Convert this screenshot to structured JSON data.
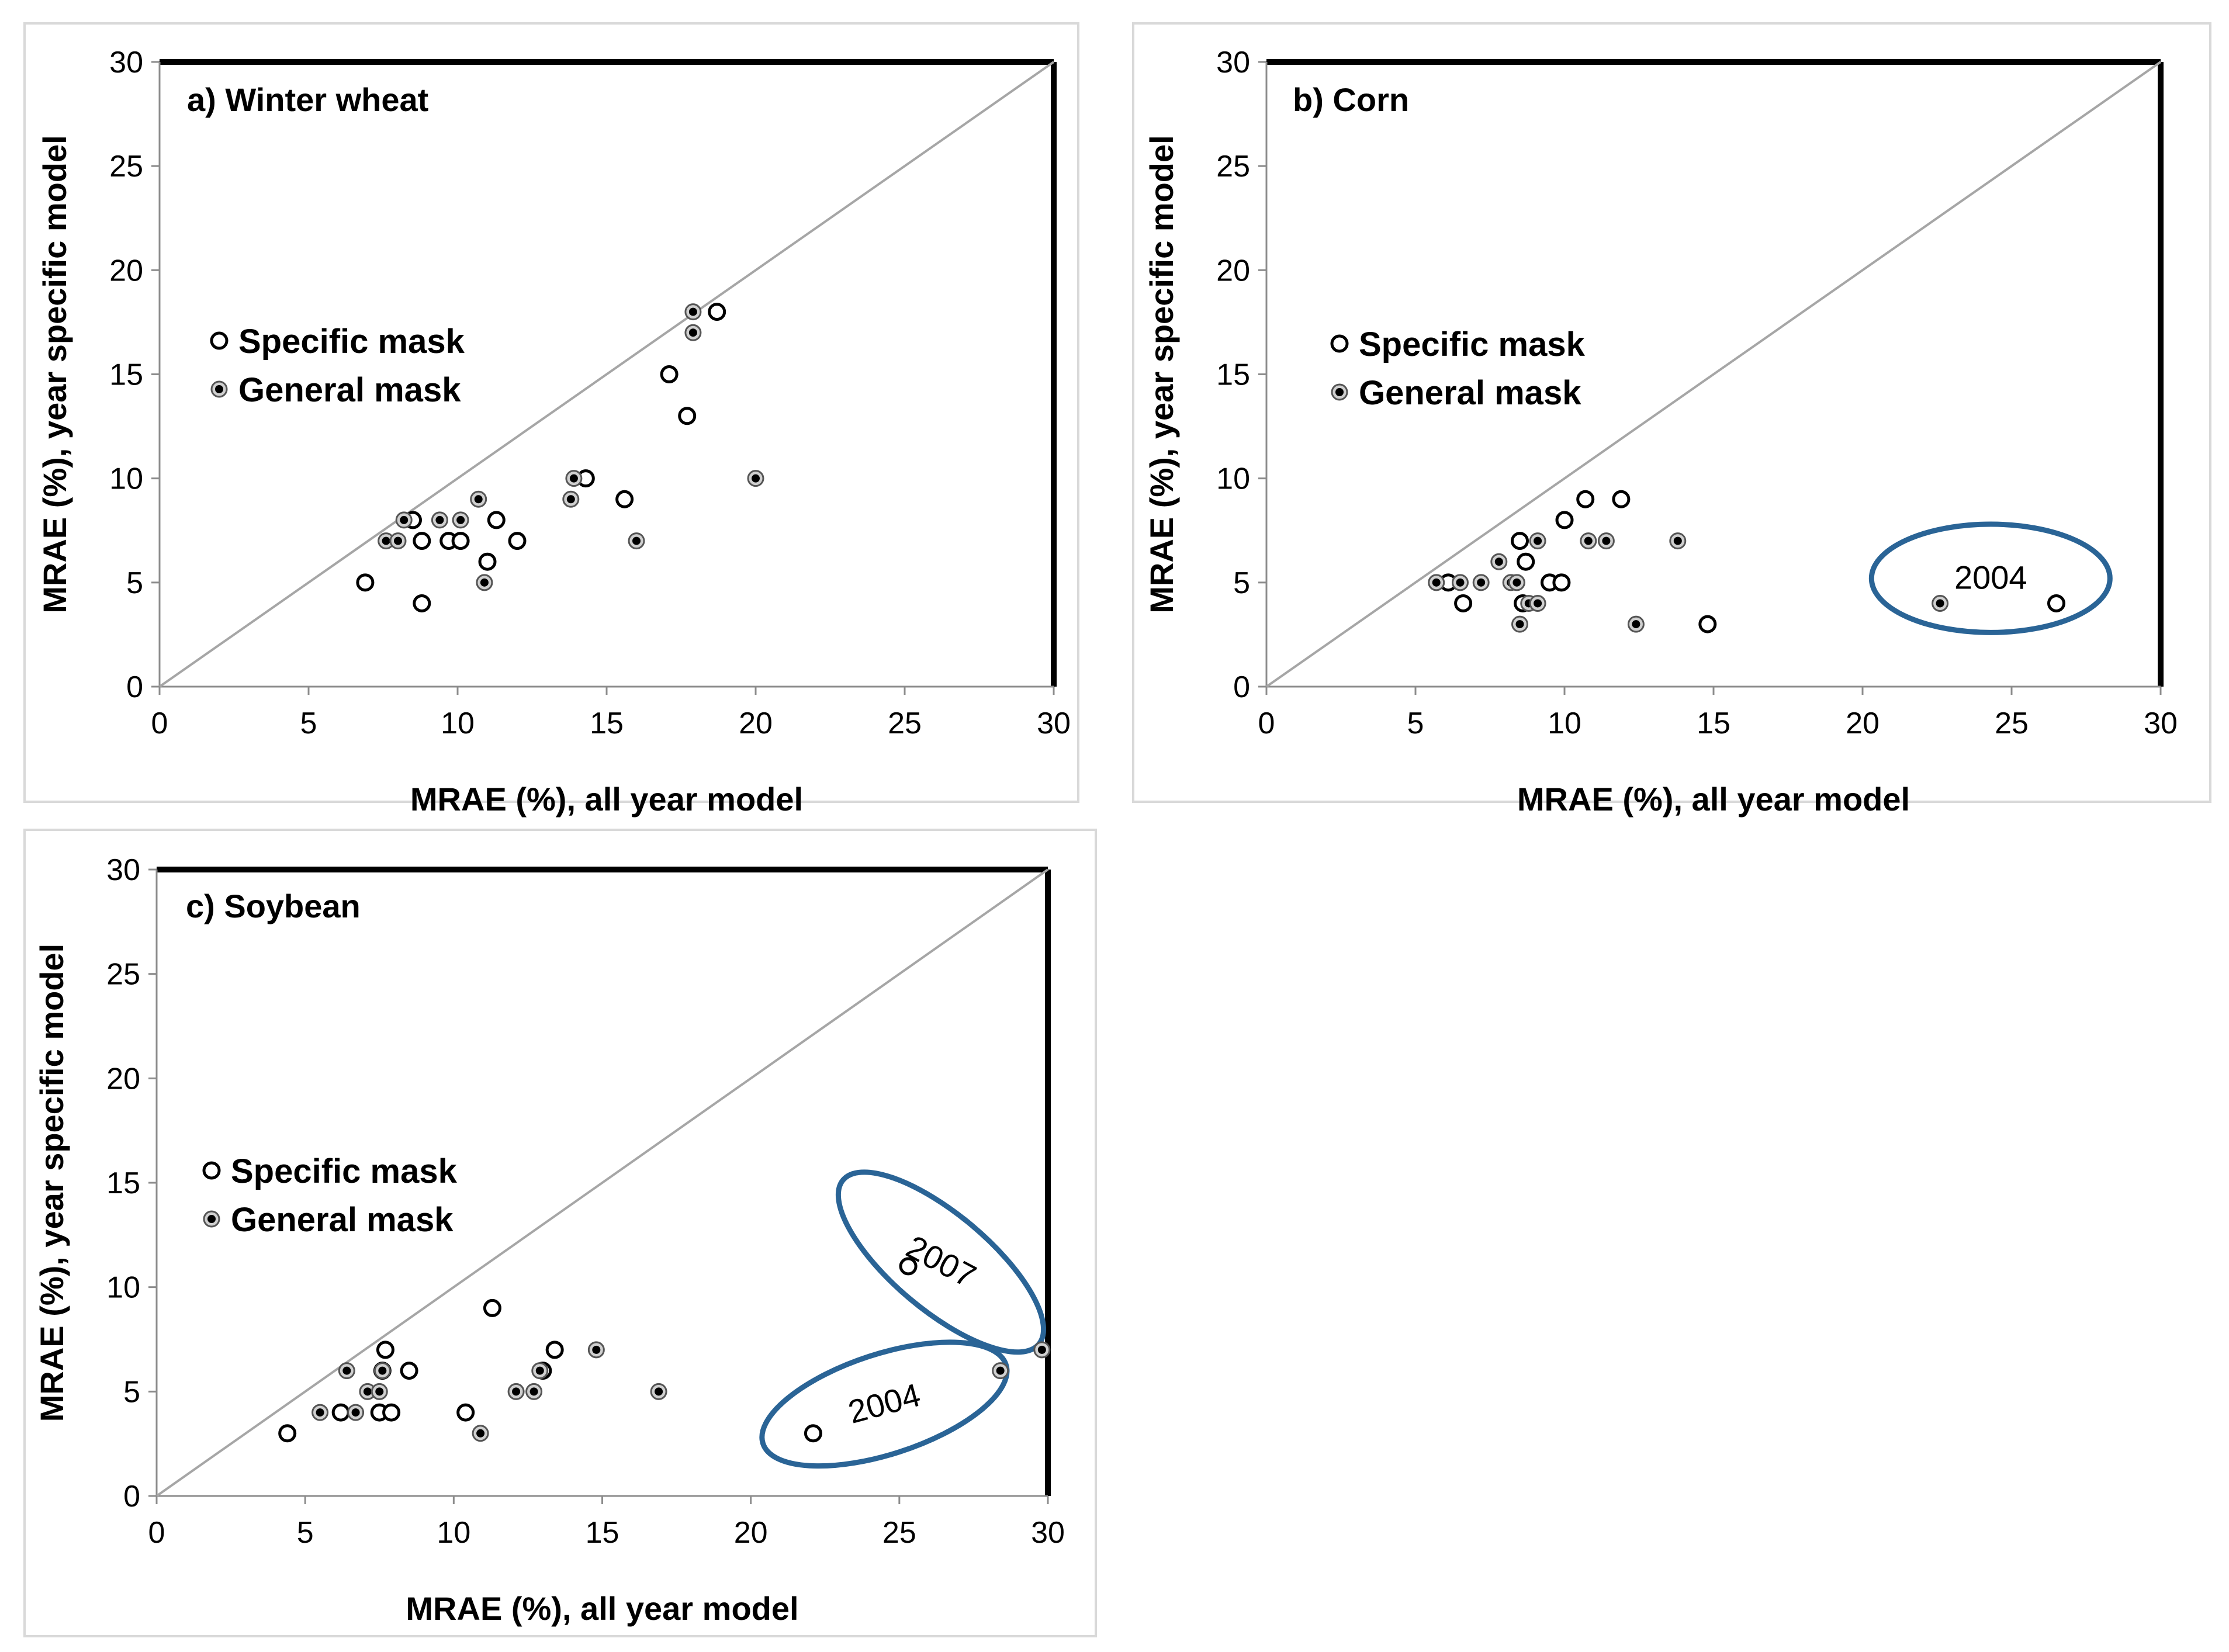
{
  "chart_data": [
    {
      "type": "scatter",
      "id": "a",
      "title": "a) Winter wheat",
      "xlabel": "MRAE (%), all year model",
      "ylabel": "MRAE (%), year specific model",
      "xlim": [
        0,
        30
      ],
      "ylim": [
        0,
        30
      ],
      "xticks": [
        "0",
        "5",
        "10",
        "15",
        "20",
        "25",
        "30"
      ],
      "yticks": [
        "0",
        "5",
        "10",
        "15",
        "20",
        "25",
        "30"
      ],
      "reference_line": "1:1",
      "legend": {
        "placement": "left-middle",
        "entries": [
          "Specific mask",
          "General mask"
        ]
      },
      "annotations": [],
      "series": [
        {
          "name": "Specific mask",
          "marker": "open",
          "points": [
            [
              6.9,
              5
            ],
            [
              8.8,
              4
            ],
            [
              8.5,
              8
            ],
            [
              8.8,
              7
            ],
            [
              9.7,
              7
            ],
            [
              10.1,
              7
            ],
            [
              11.0,
              6
            ],
            [
              11.3,
              8
            ],
            [
              12.0,
              7
            ],
            [
              14.3,
              10
            ],
            [
              15.6,
              9
            ],
            [
              17.1,
              15
            ],
            [
              17.7,
              13
            ],
            [
              18.7,
              18
            ]
          ]
        },
        {
          "name": "General mask",
          "marker": "filled",
          "points": [
            [
              7.6,
              7
            ],
            [
              8.0,
              7
            ],
            [
              8.2,
              8
            ],
            [
              9.4,
              8
            ],
            [
              10.1,
              8
            ],
            [
              10.7,
              9
            ],
            [
              10.9,
              5
            ],
            [
              13.8,
              9
            ],
            [
              13.9,
              10
            ],
            [
              16.0,
              7
            ],
            [
              17.9,
              17
            ],
            [
              17.9,
              18
            ],
            [
              20.0,
              10
            ]
          ]
        }
      ]
    },
    {
      "type": "scatter",
      "id": "b",
      "title": "b) Corn",
      "xlabel": "MRAE (%), all year model",
      "ylabel": "MRAE (%), year specific model",
      "xlim": [
        0,
        30
      ],
      "ylim": [
        0,
        30
      ],
      "xticks": [
        "0",
        "5",
        "10",
        "15",
        "20",
        "25",
        "30"
      ],
      "yticks": [
        "0",
        "5",
        "10",
        "15",
        "20",
        "25",
        "30"
      ],
      "reference_line": "1:1",
      "legend": {
        "placement": "left-middle",
        "entries": [
          "Specific mask",
          "General mask"
        ]
      },
      "annotations": [
        {
          "text": "2004",
          "x": 24.3,
          "y": 5.2,
          "rx": 4.0,
          "ry": 2.6,
          "angle": 0,
          "text_angle": 0
        }
      ],
      "series": [
        {
          "name": "Specific mask",
          "marker": "open",
          "points": [
            [
              6.1,
              5
            ],
            [
              6.6,
              4
            ],
            [
              8.5,
              7
            ],
            [
              8.7,
              6
            ],
            [
              8.6,
              4
            ],
            [
              9.5,
              5
            ],
            [
              9.9,
              5
            ],
            [
              10.0,
              8
            ],
            [
              10.7,
              9
            ],
            [
              11.9,
              9
            ],
            [
              14.8,
              3
            ],
            [
              26.5,
              4
            ]
          ]
        },
        {
          "name": "General mask",
          "marker": "filled",
          "points": [
            [
              5.7,
              5
            ],
            [
              6.5,
              5
            ],
            [
              7.2,
              5
            ],
            [
              7.8,
              6
            ],
            [
              8.2,
              5
            ],
            [
              8.4,
              5
            ],
            [
              8.5,
              3
            ],
            [
              8.8,
              4
            ],
            [
              9.1,
              7
            ],
            [
              9.1,
              4
            ],
            [
              10.8,
              7
            ],
            [
              11.4,
              7
            ],
            [
              12.4,
              3
            ],
            [
              13.8,
              7
            ],
            [
              22.6,
              4
            ]
          ]
        }
      ]
    },
    {
      "type": "scatter",
      "id": "c",
      "title": "c) Soybean",
      "xlabel": "MRAE (%), all year model",
      "ylabel": "MRAE (%), year specific model",
      "xlim": [
        0,
        30
      ],
      "ylim": [
        0,
        30
      ],
      "xticks": [
        "0",
        "5",
        "10",
        "15",
        "20",
        "25",
        "30"
      ],
      "yticks": [
        "0",
        "5",
        "10",
        "15",
        "20",
        "25",
        "30"
      ],
      "reference_line": "1:1",
      "legend": {
        "placement": "left-middle",
        "entries": [
          "Specific mask",
          "General mask"
        ]
      },
      "annotations": [
        {
          "text": "2007",
          "x": 26.4,
          "y": 11.2,
          "rx": 4.3,
          "ry": 2.3,
          "angle": 40,
          "text_angle": 28
        },
        {
          "text": "2004",
          "x": 24.5,
          "y": 4.4,
          "rx": 4.3,
          "ry": 2.4,
          "angle": -18,
          "text_angle": -15
        }
      ],
      "series": [
        {
          "name": "Specific mask",
          "marker": "open",
          "points": [
            [
              4.4,
              3
            ],
            [
              6.2,
              4
            ],
            [
              7.5,
              4
            ],
            [
              7.9,
              4
            ],
            [
              7.7,
              7
            ],
            [
              8.5,
              6
            ],
            [
              7.6,
              6
            ],
            [
              10.4,
              4
            ],
            [
              11.3,
              9
            ],
            [
              13.0,
              6
            ],
            [
              13.4,
              7
            ],
            [
              22.1,
              3
            ],
            [
              25.3,
              11
            ]
          ]
        },
        {
          "name": "General mask",
          "marker": "filled",
          "points": [
            [
              5.5,
              4
            ],
            [
              6.4,
              6
            ],
            [
              6.7,
              4
            ],
            [
              7.1,
              5
            ],
            [
              7.5,
              5
            ],
            [
              7.6,
              6
            ],
            [
              10.9,
              3
            ],
            [
              12.1,
              5
            ],
            [
              12.7,
              5
            ],
            [
              12.9,
              6
            ],
            [
              14.8,
              7
            ],
            [
              16.9,
              5
            ],
            [
              28.4,
              6
            ],
            [
              29.8,
              7
            ]
          ]
        }
      ]
    }
  ]
}
